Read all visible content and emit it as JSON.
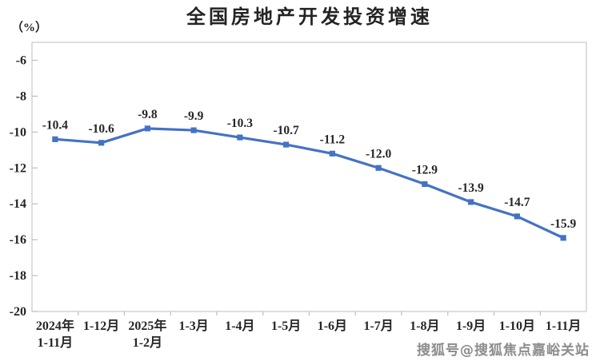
{
  "title": "全国房地产开发投资增速",
  "unit_label": "（%）",
  "watermark": "搜狐号@搜狐焦点嘉峪关站",
  "colors": {
    "line": "#4472C4",
    "axis": "#c9c9c9",
    "tick": "#bdbdbd",
    "text": "#262626",
    "title": "#232323",
    "watermark": "#8d8d8d"
  },
  "chart_data": {
    "type": "line",
    "title": "全国房地产开发投资增速",
    "ylabel": "（%）",
    "categories": [
      "2024年\n1-11月",
      "1-12月",
      "2025年\n1-2月",
      "1-3月",
      "1-4月",
      "1-5月",
      "1-6月",
      "1-7月",
      "1-8月",
      "1-9月",
      "1-10月",
      "1-11月"
    ],
    "values": [
      -10.4,
      -10.6,
      -9.8,
      -9.9,
      -10.3,
      -10.7,
      -11.2,
      -12.0,
      -12.9,
      -13.9,
      -14.7,
      -15.9
    ],
    "labels": [
      "-10.4",
      "-10.6",
      "-9.8",
      "-9.9",
      "-10.3",
      "-10.7",
      "-11.2",
      "-12.0",
      "-12.9",
      "-13.9",
      "-14.7",
      "-15.9"
    ],
    "yticks": [
      -6,
      -8,
      -10,
      -12,
      -14,
      -16,
      -18,
      -20
    ],
    "ylim": [
      -20,
      -5
    ],
    "grid": false,
    "legend": "none",
    "marker": "square"
  }
}
